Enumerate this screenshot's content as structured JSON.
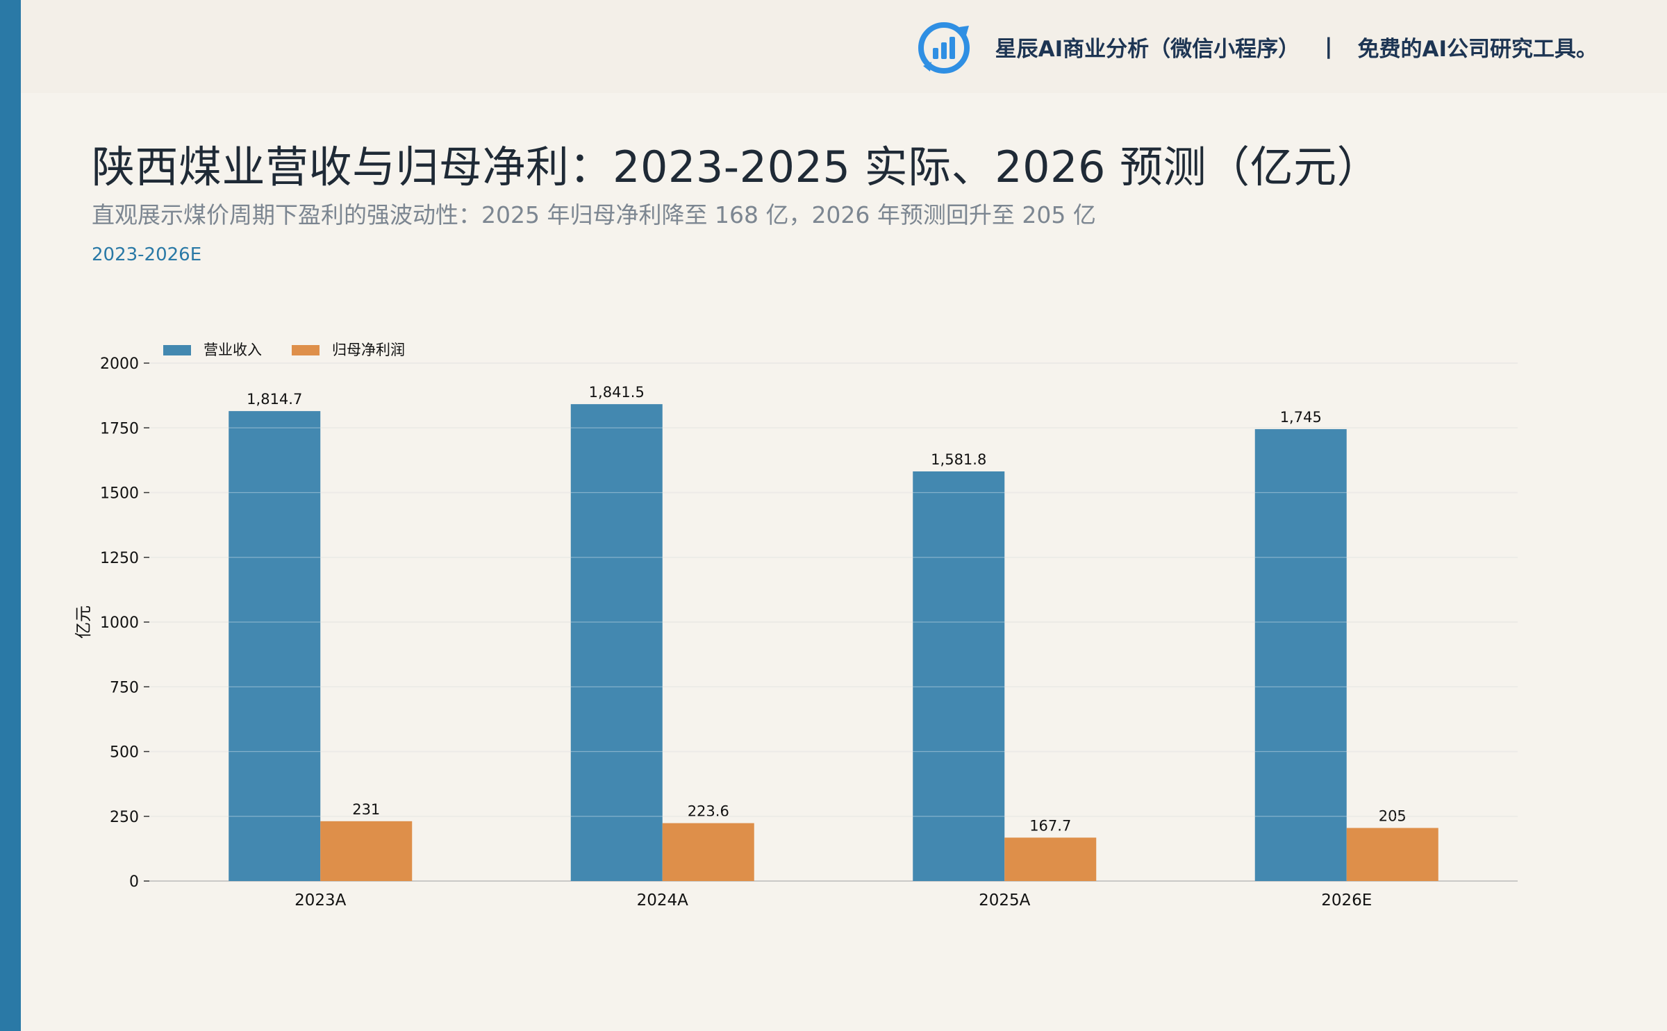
{
  "header": {
    "brand_name": "星辰AI商业分析（微信小程序）",
    "separator": "|",
    "brand_tagline": "免费的AI公司研究工具。",
    "logo_icon": "bar-chart-circle-icon"
  },
  "page": {
    "title": "陕西煤业营收与归母净利：2023-2025 实际、2026 预测（亿元）",
    "subtitle": "直观展示煤价周期下盈利的强波动性：2025 年归母净利降至 168 亿，2026 年预测回升至 205 亿",
    "range_tag": "2023-2026E"
  },
  "colors": {
    "accent": "#2a79a6",
    "revenue": "#4388b0",
    "net_profit": "#de8f4a",
    "background": "#f6f3ed"
  },
  "chart_data": {
    "type": "bar",
    "categories": [
      "2023A",
      "2024A",
      "2025A",
      "2026E"
    ],
    "series": [
      {
        "name": "营业收入",
        "values": [
          1814.7,
          1841.5,
          1581.8,
          1745
        ],
        "labels": [
          "1,814.7",
          "1,841.5",
          "1,581.8",
          "1,745"
        ]
      },
      {
        "name": "归母净利润",
        "values": [
          231,
          223.6,
          167.7,
          205
        ],
        "labels": [
          "231",
          "223.6",
          "167.7",
          "205"
        ]
      }
    ],
    "ylabel": "亿元",
    "ylim": [
      0,
      2000
    ],
    "yticks": [
      0,
      250,
      500,
      750,
      1000,
      1250,
      1500,
      1750,
      2000
    ],
    "grid": true,
    "legend": "top-left"
  }
}
